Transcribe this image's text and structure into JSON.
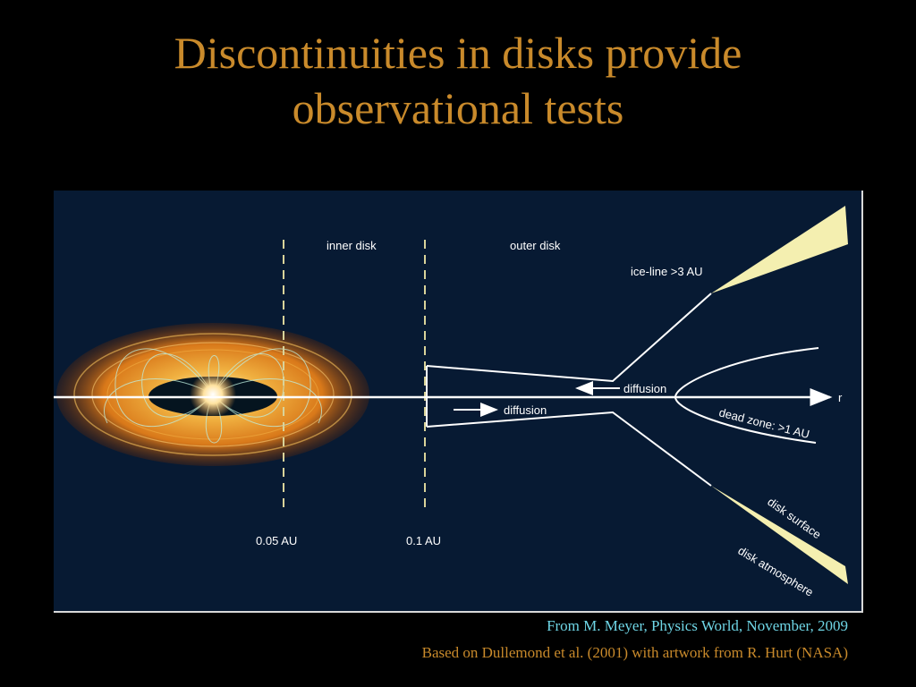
{
  "title": {
    "line1": "Discontinuities in disks provide",
    "line2": "observational tests"
  },
  "diagram": {
    "labels": {
      "inner_disk": "inner disk",
      "outer_disk": "outer disk",
      "ice_line": "ice-line >3 AU",
      "diffusion_inward": "diffusion",
      "diffusion_outward": "diffusion",
      "r_axis": "r",
      "dead_zone": "dead zone: >1 AU",
      "disk_surface": "disk surface",
      "disk_atmosphere": "disk atmosphere",
      "radius_005": "0.05 AU",
      "radius_01": "0.1 AU"
    },
    "colors": {
      "background": "#071a33",
      "disk_orange": "#e08a1e",
      "surface_fill": "#f4efb0",
      "line": "#ffffff",
      "dashed_line": "#d9d39a"
    }
  },
  "credits": {
    "line1": "From M. Meyer, Physics World, November, 2009",
    "line2": "Based on Dullemond et al. (2001) with artwork from  R. Hurt (NASA)"
  },
  "colors": {
    "title": "#c98a2b",
    "credit_primary": "#6fd6e6",
    "credit_secondary": "#c98a2b",
    "slide_background": "#000000"
  }
}
